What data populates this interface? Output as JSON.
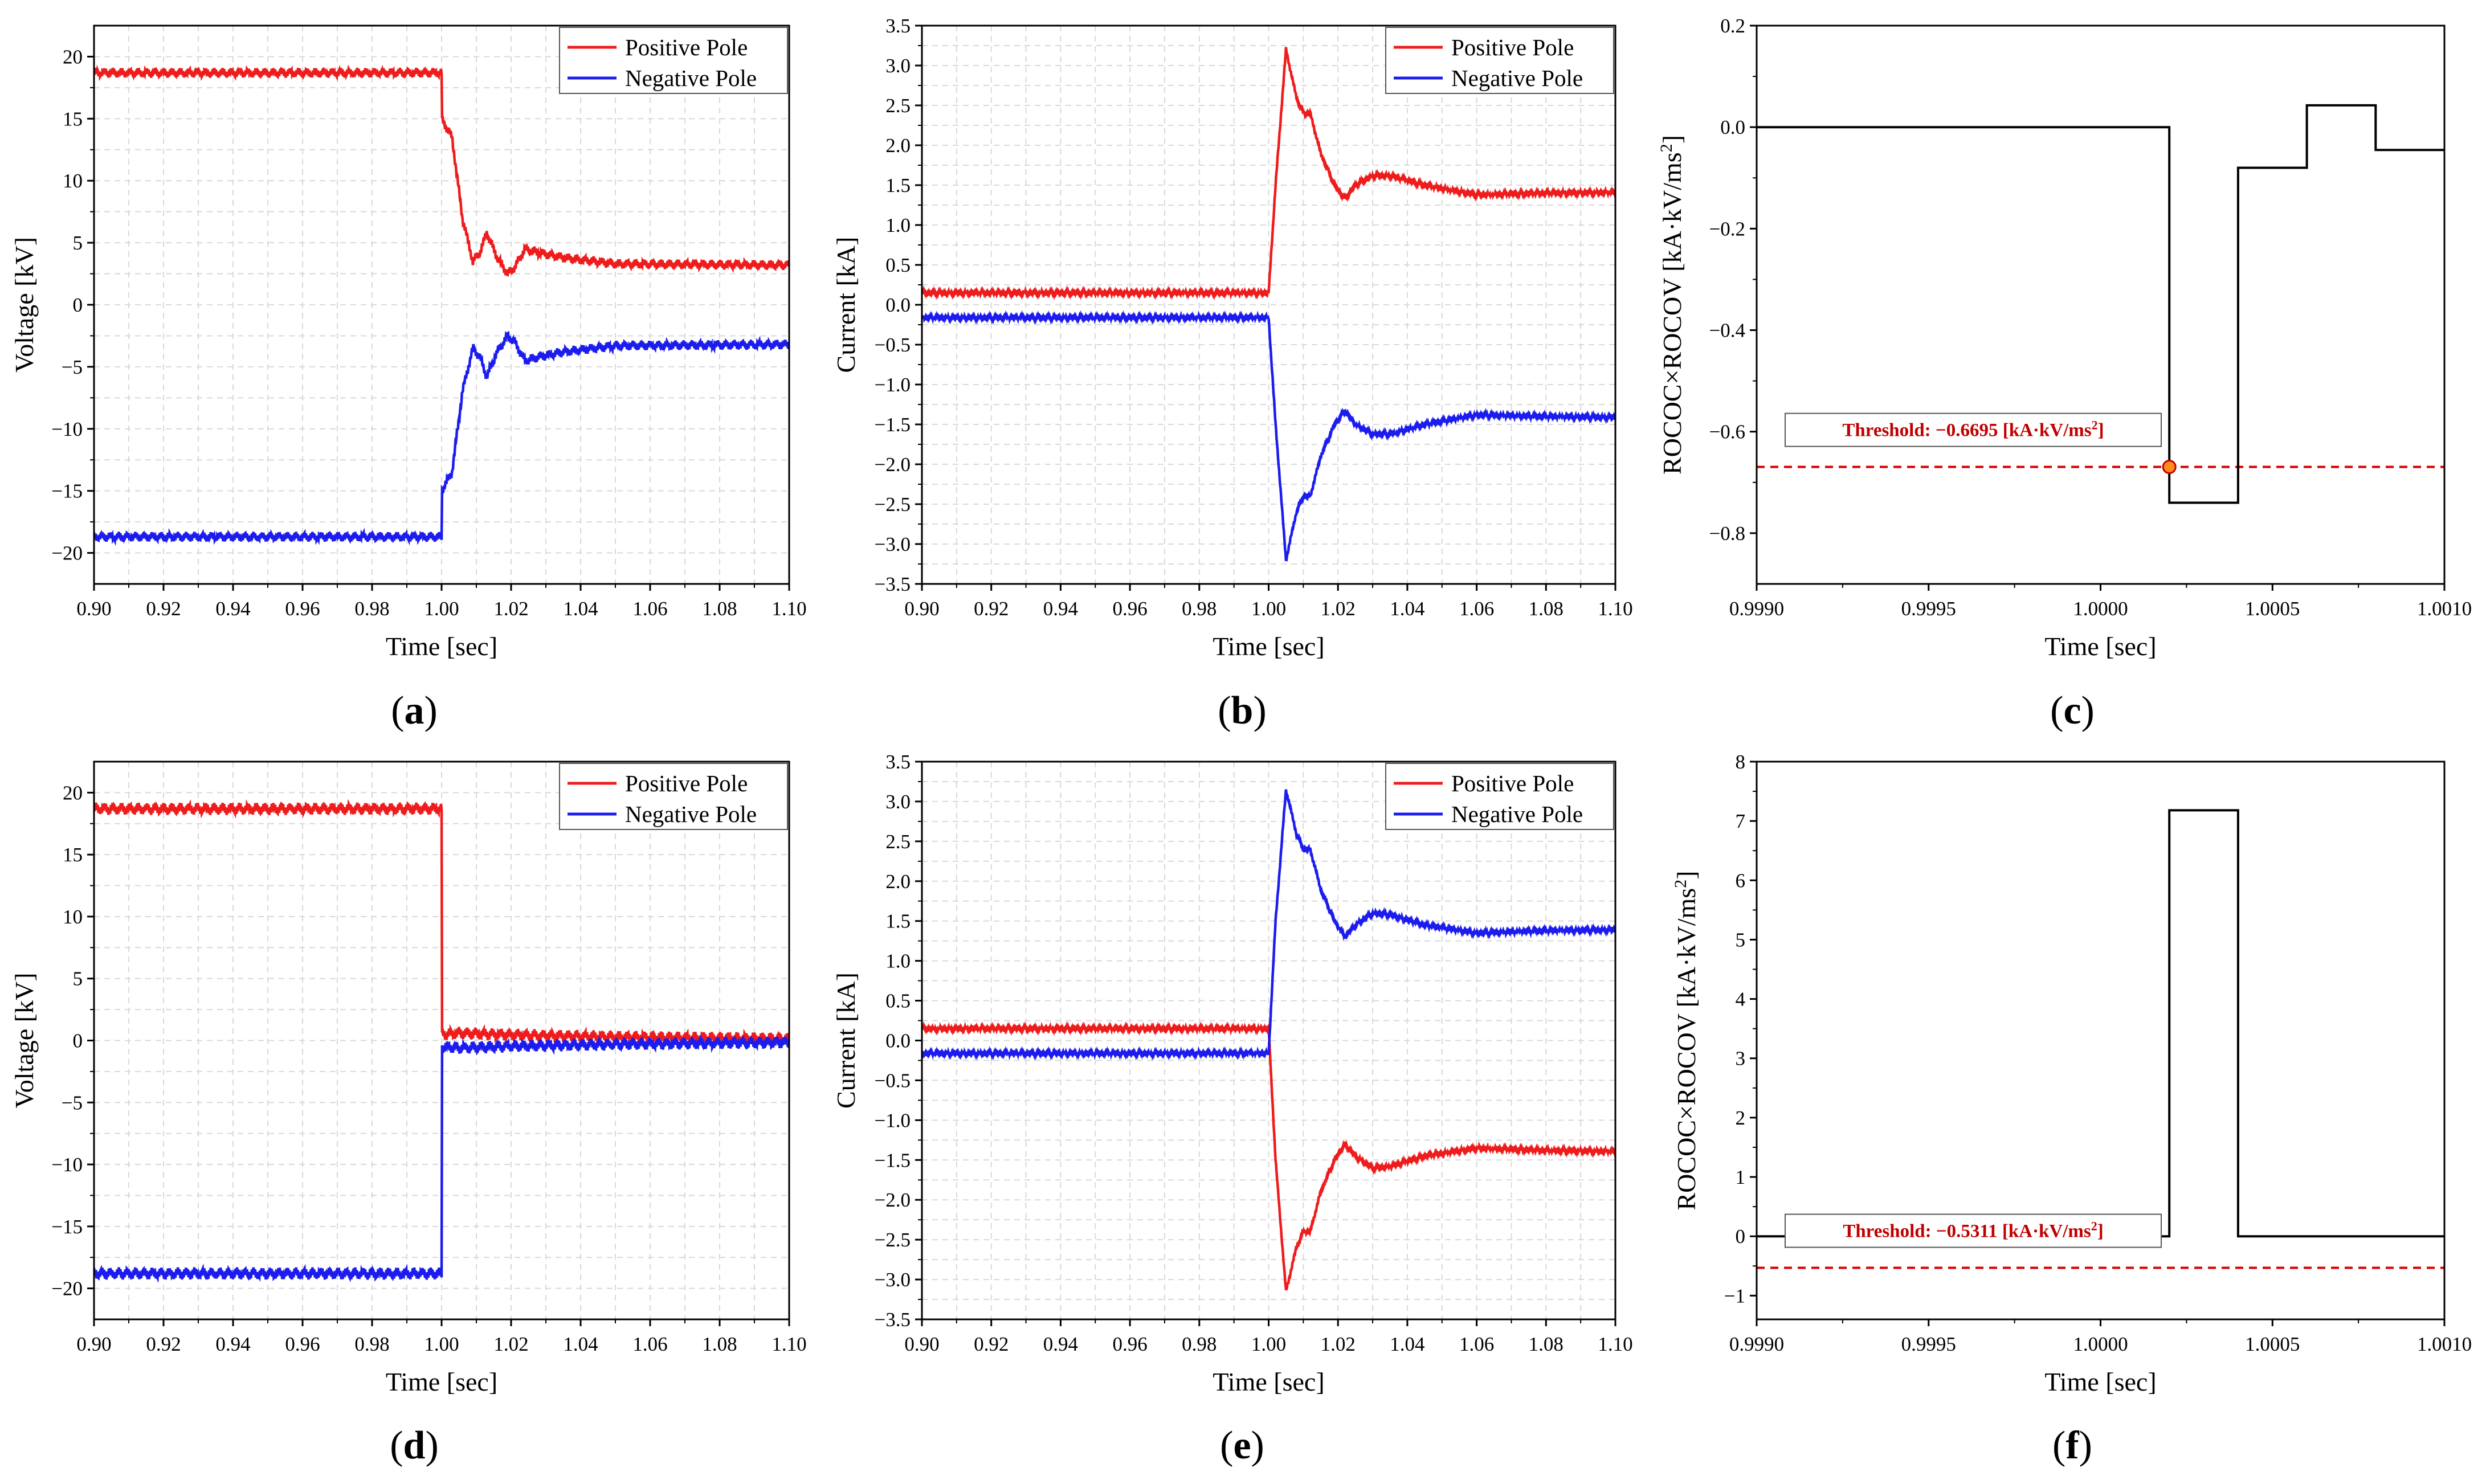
{
  "figure": {
    "panels": [
      "(a)",
      "(b)",
      "(c)",
      "(d)",
      "(e)",
      "(f)"
    ]
  },
  "colors": {
    "positive": "#ee1c1c",
    "negative": "#1c1cee",
    "rococ": "#000000",
    "threshold": "#d90000",
    "marker": "#ff8c1a"
  },
  "chart_data": [
    {
      "id": "a",
      "type": "line",
      "panel_label": "a",
      "xlabel": "Time [sec]",
      "ylabel": "Voltage [kV]",
      "xlim": [
        0.9,
        1.1
      ],
      "ylim": [
        -22.5,
        22.5
      ],
      "xticks": [
        0.9,
        0.92,
        0.94,
        0.96,
        0.98,
        1.0,
        1.02,
        1.04,
        1.06,
        1.08,
        1.1
      ],
      "xtick_labels": [
        "0.90",
        "0.92",
        "0.94",
        "0.96",
        "0.98",
        "1.00",
        "1.02",
        "1.04",
        "1.06",
        "1.08",
        "1.10"
      ],
      "yticks": [
        -20,
        -15,
        -10,
        -5,
        0,
        5,
        10,
        15,
        20
      ],
      "ytick_labels": [
        "−20",
        "−15",
        "−10",
        "−5",
        "0",
        "5",
        "10",
        "15",
        "20"
      ],
      "grid": true,
      "legend": {
        "position": "top-right",
        "entries": [
          "Positive Pole",
          "Negative Pole"
        ]
      },
      "series": [
        {
          "name": "Positive Pole",
          "color": "positive",
          "ripple": 0.4,
          "points": [
            [
              0.9,
              18.7
            ],
            [
              1.0,
              18.7
            ],
            [
              1.0,
              15.0
            ],
            [
              1.003,
              13.5
            ],
            [
              1.006,
              7.0
            ],
            [
              1.009,
              3.5
            ],
            [
              1.011,
              4.2
            ],
            [
              1.013,
              5.8
            ],
            [
              1.016,
              3.8
            ],
            [
              1.019,
              2.5
            ],
            [
              1.021,
              3.0
            ],
            [
              1.024,
              4.5
            ],
            [
              1.028,
              4.2
            ],
            [
              1.035,
              3.8
            ],
            [
              1.05,
              3.3
            ],
            [
              1.1,
              3.2
            ]
          ]
        },
        {
          "name": "Negative Pole",
          "color": "negative",
          "ripple": 0.4,
          "points": [
            [
              0.9,
              -18.7
            ],
            [
              1.0,
              -18.7
            ],
            [
              1.0,
              -15.0
            ],
            [
              1.003,
              -13.5
            ],
            [
              1.006,
              -7.0
            ],
            [
              1.009,
              -3.5
            ],
            [
              1.011,
              -4.2
            ],
            [
              1.013,
              -5.8
            ],
            [
              1.016,
              -3.8
            ],
            [
              1.019,
              -2.5
            ],
            [
              1.021,
              -3.0
            ],
            [
              1.024,
              -4.5
            ],
            [
              1.028,
              -4.2
            ],
            [
              1.035,
              -3.8
            ],
            [
              1.05,
              -3.3
            ],
            [
              1.1,
              -3.2
            ]
          ]
        }
      ]
    },
    {
      "id": "b",
      "type": "line",
      "panel_label": "b",
      "xlabel": "Time [sec]",
      "ylabel": "Current [kA]",
      "xlim": [
        0.9,
        1.1
      ],
      "ylim": [
        -3.5,
        3.5
      ],
      "xticks": [
        0.9,
        0.92,
        0.94,
        0.96,
        0.98,
        1.0,
        1.02,
        1.04,
        1.06,
        1.08,
        1.1
      ],
      "xtick_labels": [
        "0.90",
        "0.92",
        "0.94",
        "0.96",
        "0.98",
        "1.00",
        "1.02",
        "1.04",
        "1.06",
        "1.08",
        "1.10"
      ],
      "yticks": [
        -3.5,
        -3.0,
        -2.5,
        -2.0,
        -1.5,
        -1.0,
        -0.5,
        0.0,
        0.5,
        1.0,
        1.5,
        2.0,
        2.5,
        3.0,
        3.5
      ],
      "ytick_labels": [
        "−3.5",
        "−3.0",
        "−2.5",
        "−2.0",
        "−1.5",
        "−1.0",
        "−0.5",
        "0.0",
        "0.5",
        "1.0",
        "1.5",
        "2.0",
        "2.5",
        "3.0",
        "3.5"
      ],
      "grid": true,
      "legend": {
        "position": "top-right",
        "entries": [
          "Positive Pole",
          "Negative Pole"
        ]
      },
      "series": [
        {
          "name": "Positive Pole",
          "color": "positive",
          "ripple": 0.03,
          "points": [
            [
              0.9,
              0.15
            ],
            [
              1.0,
              0.15
            ],
            [
              1.002,
              1.5
            ],
            [
              1.005,
              3.2
            ],
            [
              1.008,
              2.6
            ],
            [
              1.01,
              2.4
            ],
            [
              1.012,
              2.4
            ],
            [
              1.015,
              1.9
            ],
            [
              1.019,
              1.5
            ],
            [
              1.022,
              1.33
            ],
            [
              1.025,
              1.5
            ],
            [
              1.03,
              1.62
            ],
            [
              1.035,
              1.62
            ],
            [
              1.045,
              1.5
            ],
            [
              1.06,
              1.38
            ],
            [
              1.08,
              1.4
            ],
            [
              1.1,
              1.41
            ]
          ]
        },
        {
          "name": "Negative Pole",
          "color": "negative",
          "ripple": 0.03,
          "points": [
            [
              0.9,
              -0.16
            ],
            [
              1.0,
              -0.16
            ],
            [
              1.002,
              -1.5
            ],
            [
              1.005,
              -3.2
            ],
            [
              1.008,
              -2.6
            ],
            [
              1.01,
              -2.4
            ],
            [
              1.012,
              -2.4
            ],
            [
              1.015,
              -1.9
            ],
            [
              1.019,
              -1.5
            ],
            [
              1.022,
              -1.33
            ],
            [
              1.025,
              -1.5
            ],
            [
              1.03,
              -1.62
            ],
            [
              1.035,
              -1.62
            ],
            [
              1.045,
              -1.5
            ],
            [
              1.06,
              -1.38
            ],
            [
              1.08,
              -1.4
            ],
            [
              1.1,
              -1.41
            ]
          ]
        }
      ]
    },
    {
      "id": "c",
      "type": "line",
      "panel_label": "c",
      "xlabel": "Time [sec]",
      "ylabel_main": "ROCOC×ROCOV [kA·kV/ms",
      "ylabel_sup": "2",
      "ylabel_end": "]",
      "xlim": [
        0.999,
        1.001
      ],
      "ylim": [
        -0.9,
        0.2
      ],
      "xticks": [
        0.999,
        0.9995,
        1.0,
        1.0005,
        1.001
      ],
      "xtick_labels": [
        "0.9990",
        "0.9995",
        "1.0000",
        "1.0005",
        "1.0010"
      ],
      "yticks": [
        -0.8,
        -0.6,
        -0.4,
        -0.2,
        0.0,
        0.2
      ],
      "ytick_labels": [
        "−0.8",
        "−0.6",
        "−0.4",
        "−0.2",
        "0.0",
        "0.2"
      ],
      "grid": false,
      "threshold": {
        "value": -0.6695,
        "label_main": "Threshold: −0.6695 [kA·kV/ms",
        "label_sup": "2",
        "label_end": "]"
      },
      "marker": {
        "x": 1.0002,
        "y": -0.6695
      },
      "series": [
        {
          "name": "ROCOC×ROCOV",
          "color": "rococ",
          "points": [
            [
              0.999,
              0.0
            ],
            [
              1.0002,
              0.0
            ],
            [
              1.0002,
              -0.74
            ],
            [
              1.0004,
              -0.74
            ],
            [
              1.0004,
              -0.08
            ],
            [
              1.0006,
              -0.08
            ],
            [
              1.0006,
              0.043
            ],
            [
              1.0008,
              0.043
            ],
            [
              1.0008,
              -0.045
            ],
            [
              1.001,
              -0.045
            ]
          ]
        }
      ]
    },
    {
      "id": "d",
      "type": "line",
      "panel_label": "d",
      "xlabel": "Time [sec]",
      "ylabel": "Voltage [kV]",
      "xlim": [
        0.9,
        1.1
      ],
      "ylim": [
        -22.5,
        22.5
      ],
      "xticks": [
        0.9,
        0.92,
        0.94,
        0.96,
        0.98,
        1.0,
        1.02,
        1.04,
        1.06,
        1.08,
        1.1
      ],
      "xtick_labels": [
        "0.90",
        "0.92",
        "0.94",
        "0.96",
        "0.98",
        "1.00",
        "1.02",
        "1.04",
        "1.06",
        "1.08",
        "1.10"
      ],
      "yticks": [
        -20,
        -15,
        -10,
        -5,
        0,
        5,
        10,
        15,
        20
      ],
      "ytick_labels": [
        "−20",
        "−15",
        "−10",
        "−5",
        "0",
        "5",
        "10",
        "15",
        "20"
      ],
      "grid": true,
      "legend": {
        "position": "top-right",
        "entries": [
          "Positive Pole",
          "Negative Pole"
        ]
      },
      "series": [
        {
          "name": "Positive Pole",
          "color": "positive",
          "ripple": 0.5,
          "points": [
            [
              0.9,
              18.7
            ],
            [
              1.0,
              18.7
            ],
            [
              1.0,
              0.5
            ],
            [
              1.005,
              0.6
            ],
            [
              1.02,
              0.45
            ],
            [
              1.05,
              0.3
            ],
            [
              1.1,
              0.15
            ]
          ]
        },
        {
          "name": "Negative Pole",
          "color": "negative",
          "ripple": 0.5,
          "points": [
            [
              0.9,
              -18.8
            ],
            [
              1.0,
              -18.8
            ],
            [
              1.0,
              -0.5
            ],
            [
              1.005,
              -0.6
            ],
            [
              1.02,
              -0.45
            ],
            [
              1.05,
              -0.3
            ],
            [
              1.1,
              -0.15
            ]
          ]
        }
      ]
    },
    {
      "id": "e",
      "type": "line",
      "panel_label": "e",
      "xlabel": "Time [sec]",
      "ylabel": "Current [kA]",
      "xlim": [
        0.9,
        1.1
      ],
      "ylim": [
        -3.5,
        3.5
      ],
      "xticks": [
        0.9,
        0.92,
        0.94,
        0.96,
        0.98,
        1.0,
        1.02,
        1.04,
        1.06,
        1.08,
        1.1
      ],
      "xtick_labels": [
        "0.90",
        "0.92",
        "0.94",
        "0.96",
        "0.98",
        "1.00",
        "1.02",
        "1.04",
        "1.06",
        "1.08",
        "1.10"
      ],
      "yticks": [
        -3.5,
        -3.0,
        -2.5,
        -2.0,
        -1.5,
        -1.0,
        -0.5,
        0.0,
        0.5,
        1.0,
        1.5,
        2.0,
        2.5,
        3.0,
        3.5
      ],
      "ytick_labels": [
        "−3.5",
        "−3.0",
        "−2.5",
        "−2.0",
        "−1.5",
        "−1.0",
        "−0.5",
        "0.0",
        "0.5",
        "1.0",
        "1.5",
        "2.0",
        "2.5",
        "3.0",
        "3.5"
      ],
      "grid": true,
      "legend": {
        "position": "top-right",
        "entries": [
          "Positive Pole",
          "Negative Pole"
        ]
      },
      "series": [
        {
          "name": "Positive Pole",
          "color": "positive",
          "ripple": 0.03,
          "points": [
            [
              0.9,
              0.15
            ],
            [
              1.0,
              0.15
            ],
            [
              1.002,
              -1.5
            ],
            [
              1.005,
              -3.15
            ],
            [
              1.008,
              -2.6
            ],
            [
              1.01,
              -2.4
            ],
            [
              1.012,
              -2.4
            ],
            [
              1.015,
              -1.9
            ],
            [
              1.019,
              -1.5
            ],
            [
              1.022,
              -1.3
            ],
            [
              1.025,
              -1.45
            ],
            [
              1.03,
              -1.6
            ],
            [
              1.035,
              -1.58
            ],
            [
              1.045,
              -1.45
            ],
            [
              1.06,
              -1.35
            ],
            [
              1.08,
              -1.38
            ],
            [
              1.1,
              -1.39
            ]
          ]
        },
        {
          "name": "Negative Pole",
          "color": "negative",
          "ripple": 0.03,
          "points": [
            [
              0.9,
              -0.16
            ],
            [
              1.0,
              -0.16
            ],
            [
              1.002,
              1.5
            ],
            [
              1.005,
              3.15
            ],
            [
              1.008,
              2.6
            ],
            [
              1.01,
              2.4
            ],
            [
              1.012,
              2.4
            ],
            [
              1.015,
              1.9
            ],
            [
              1.019,
              1.5
            ],
            [
              1.022,
              1.3
            ],
            [
              1.025,
              1.45
            ],
            [
              1.03,
              1.6
            ],
            [
              1.035,
              1.58
            ],
            [
              1.045,
              1.45
            ],
            [
              1.06,
              1.35
            ],
            [
              1.08,
              1.38
            ],
            [
              1.1,
              1.39
            ]
          ]
        }
      ]
    },
    {
      "id": "f",
      "type": "line",
      "panel_label": "f",
      "xlabel": "Time [sec]",
      "ylabel_main": "ROCOC×ROCOV [kA·kV/ms",
      "ylabel_sup": "2",
      "ylabel_end": "]",
      "xlim": [
        0.999,
        1.001
      ],
      "ylim": [
        -1.4,
        8.0
      ],
      "xticks": [
        0.999,
        0.9995,
        1.0,
        1.0005,
        1.001
      ],
      "xtick_labels": [
        "0.9990",
        "0.9995",
        "1.0000",
        "1.0005",
        "1.0010"
      ],
      "yticks": [
        -1,
        0,
        1,
        2,
        3,
        4,
        5,
        6,
        7,
        8
      ],
      "ytick_labels": [
        "−1",
        "0",
        "1",
        "2",
        "3",
        "4",
        "5",
        "6",
        "7",
        "8"
      ],
      "grid": false,
      "threshold": {
        "value": -0.5311,
        "label_main": "Threshold: −0.5311 [kA·kV/ms",
        "label_sup": "2",
        "label_end": "]"
      },
      "series": [
        {
          "name": "ROCOC×ROCOV",
          "color": "rococ",
          "points": [
            [
              0.999,
              0.0
            ],
            [
              1.0002,
              0.0
            ],
            [
              1.0002,
              7.18
            ],
            [
              1.0004,
              7.18
            ],
            [
              1.0004,
              0.0
            ],
            [
              1.001,
              0.0
            ]
          ]
        }
      ]
    }
  ]
}
